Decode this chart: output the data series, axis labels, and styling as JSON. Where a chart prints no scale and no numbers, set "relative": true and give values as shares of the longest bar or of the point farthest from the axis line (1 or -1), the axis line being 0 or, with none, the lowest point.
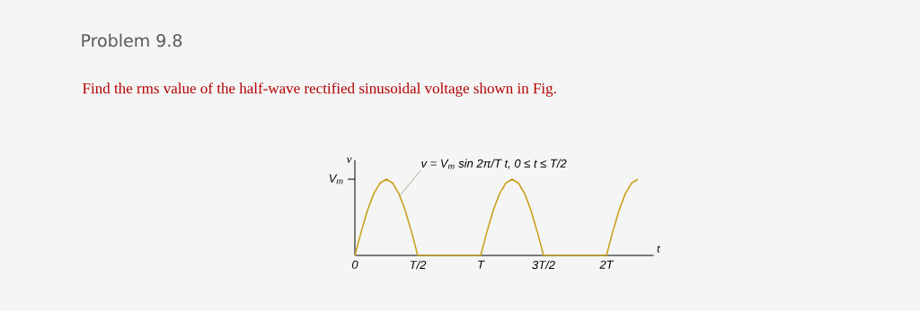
{
  "chart_data": {
    "type": "line",
    "relative": true,
    "title": "Problem 9.8",
    "subtitle": "Find the rms value of the half-wave rectified sinusoidal voltage shown in Fig.",
    "xlabel": "t",
    "ylabel": "v",
    "annotations": [
      "v = V$_{m}$ sin 2π/T t, 0 ≤ t ≤ T/2",
      "V$_{m}$"
    ],
    "categories": [
      "0",
      null,
      null,
      null,
      null,
      null,
      null,
      null,
      null,
      null,
      "T/2",
      null,
      null,
      null,
      null,
      null,
      null,
      null,
      null,
      null,
      "T",
      null,
      null,
      null,
      null,
      null,
      null,
      null,
      null,
      null,
      "3T/2",
      null,
      null,
      null,
      null,
      null,
      null,
      null,
      null,
      null,
      "2T",
      null,
      null,
      null,
      null,
      null
    ],
    "series": [
      {
        "color": "#c8a21e",
        "values": [
          0,
          0.31,
          0.59,
          0.81,
          0.95,
          1,
          0.95,
          0.81,
          0.59,
          0.31,
          0,
          0,
          0,
          0,
          0,
          0,
          0,
          0,
          0,
          0,
          0,
          0.31,
          0.59,
          0.81,
          0.95,
          1,
          0.95,
          0.81,
          0.59,
          0.31,
          0,
          0,
          0,
          0,
          0,
          0,
          0,
          0,
          0,
          0,
          0,
          0.31,
          0.59,
          0.81,
          0.95,
          1
        ]
      }
    ]
  }
}
